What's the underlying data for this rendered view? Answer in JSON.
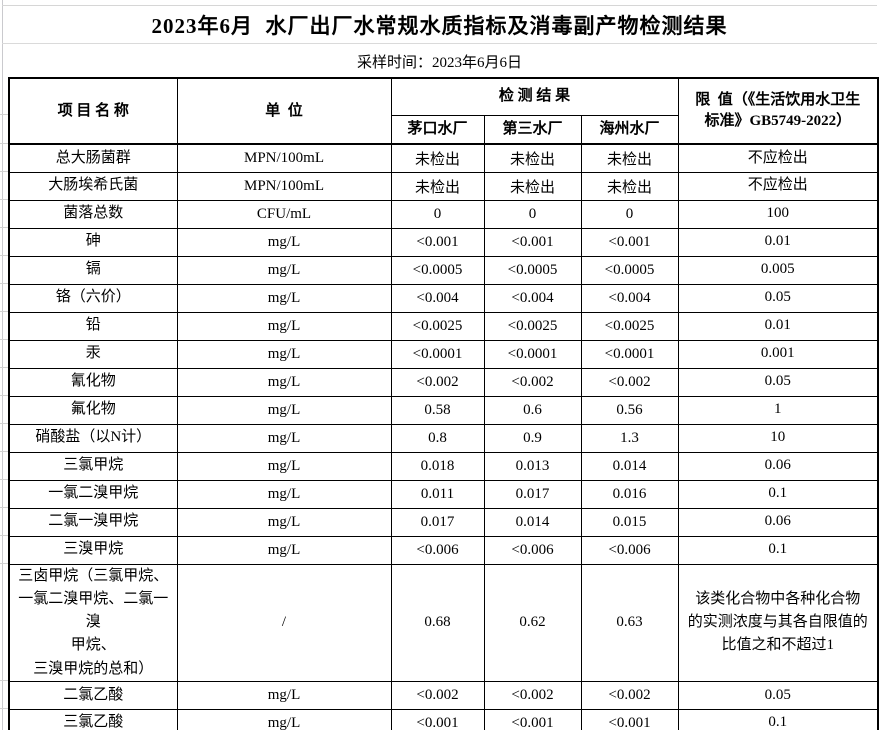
{
  "title": "2023年6月  水厂出厂水常规水质指标及消毒副产物检测结果",
  "sampling_time": "采样时间：2023年6月6日",
  "header": {
    "item": "项 目 名 称",
    "unit": "单  位",
    "results": "检 测 结 果",
    "plants": [
      "茅口水厂",
      "第三水厂",
      "海州水厂"
    ],
    "limit": "限  值（《生活饮用水卫生\n标准》GB5749-2022）"
  },
  "colors": {
    "table_border": "#000000",
    "gridline": "#cacace",
    "background": "#ffffff",
    "text": "#000000"
  },
  "rows": [
    {
      "item": "总大肠菌群",
      "unit": "MPN/100mL",
      "values": [
        "未检出",
        "未检出",
        "未检出"
      ],
      "limit": "不应检出"
    },
    {
      "item": "大肠埃希氏菌",
      "unit": "MPN/100mL",
      "values": [
        "未检出",
        "未检出",
        "未检出"
      ],
      "limit": "不应检出"
    },
    {
      "item": "菌落总数",
      "unit": "CFU/mL",
      "values": [
        "0",
        "0",
        "0"
      ],
      "limit": "100"
    },
    {
      "item": "砷",
      "unit": "mg/L",
      "values": [
        "<0.001",
        "<0.001",
        "<0.001"
      ],
      "limit": "0.01"
    },
    {
      "item": "镉",
      "unit": "mg/L",
      "values": [
        "<0.0005",
        "<0.0005",
        "<0.0005"
      ],
      "limit": "0.005"
    },
    {
      "item": "铬（六价）",
      "unit": "mg/L",
      "values": [
        "<0.004",
        "<0.004",
        "<0.004"
      ],
      "limit": "0.05"
    },
    {
      "item": "铅",
      "unit": "mg/L",
      "values": [
        "<0.0025",
        "<0.0025",
        "<0.0025"
      ],
      "limit": "0.01"
    },
    {
      "item": "汞",
      "unit": "mg/L",
      "values": [
        "<0.0001",
        "<0.0001",
        "<0.0001"
      ],
      "limit": "0.001"
    },
    {
      "item": "氰化物",
      "unit": "mg/L",
      "values": [
        "<0.002",
        "<0.002",
        "<0.002"
      ],
      "limit": "0.05"
    },
    {
      "item": "氟化物",
      "unit": "mg/L",
      "values": [
        "0.58",
        "0.6",
        "0.56"
      ],
      "limit": "1"
    },
    {
      "item": "硝酸盐（以N计）",
      "unit": "mg/L",
      "values": [
        "0.8",
        "0.9",
        "1.3"
      ],
      "limit": "10"
    },
    {
      "item": "三氯甲烷",
      "unit": "mg/L",
      "values": [
        "0.018",
        "0.013",
        "0.014"
      ],
      "limit": "0.06"
    },
    {
      "item": "一氯二溴甲烷",
      "unit": "mg/L",
      "values": [
        "0.011",
        "0.017",
        "0.016"
      ],
      "limit": "0.1"
    },
    {
      "item": "二氯一溴甲烷",
      "unit": "mg/L",
      "values": [
        "0.017",
        "0.014",
        "0.015"
      ],
      "limit": "0.06"
    },
    {
      "item": "三溴甲烷",
      "unit": "mg/L",
      "values": [
        "<0.006",
        "<0.006",
        "<0.006"
      ],
      "limit": "0.1"
    },
    {
      "item": "三卤甲烷（三氯甲烷、\n一氯二溴甲烷、二氯一溴\n甲烷、\n三溴甲烷的总和）",
      "unit": "/",
      "values": [
        "0.68",
        "0.62",
        "0.63"
      ],
      "limit": "该类化合物中各种化合物\n的实测浓度与其各自限值的\n比值之和不超过1",
      "tall": true
    },
    {
      "item": "二氯乙酸",
      "unit": "mg/L",
      "values": [
        "<0.002",
        "<0.002",
        "<0.002"
      ],
      "limit": "0.05"
    },
    {
      "item": "三氯乙酸",
      "unit": "mg/L",
      "values": [
        "<0.001",
        "<0.001",
        "<0.001"
      ],
      "limit": "0.1"
    }
  ]
}
